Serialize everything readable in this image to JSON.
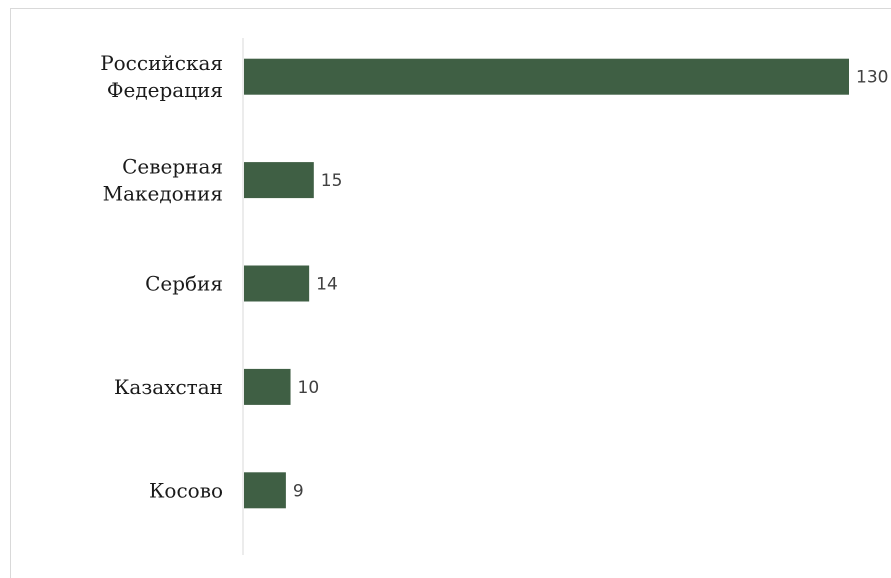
{
  "chart_data": {
    "type": "bar",
    "orientation": "horizontal",
    "categories": [
      [
        "Российская",
        "Федерация"
      ],
      [
        "Северная",
        "Македония"
      ],
      [
        "Сербия"
      ],
      [
        "Казахстан"
      ],
      [
        "Косово"
      ]
    ],
    "values": [
      130,
      15,
      14,
      10,
      9
    ],
    "value_labels": [
      "130",
      "15",
      "14",
      "10",
      "9"
    ],
    "title": "",
    "xlabel": "",
    "ylabel": "",
    "xlim": [
      0,
      130
    ],
    "grid": false,
    "legend": "none",
    "bar_color": "#3f5f44",
    "axis_color": "#d9d9d9"
  }
}
